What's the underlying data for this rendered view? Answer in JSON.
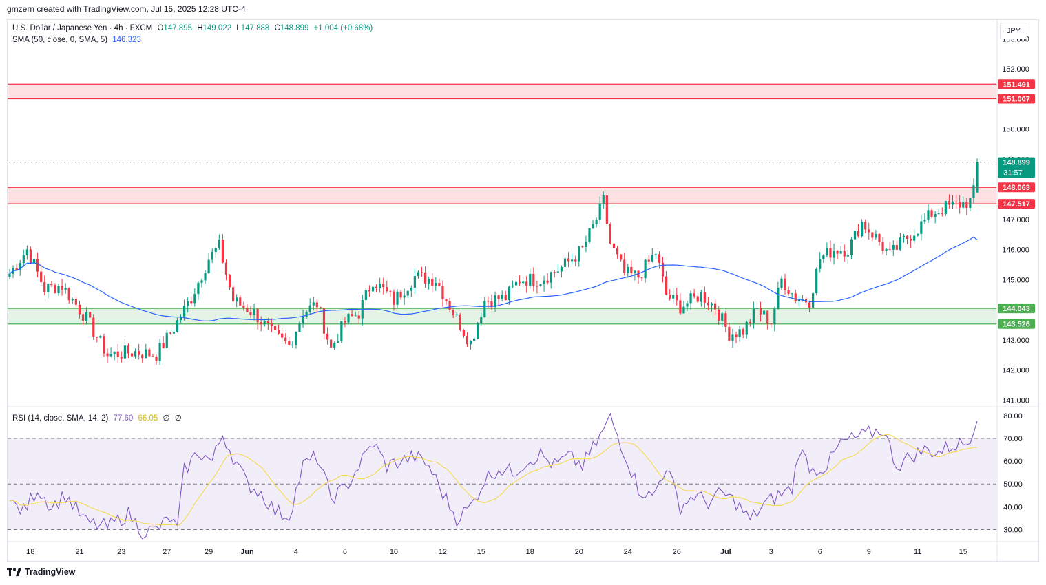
{
  "header": {
    "credit": "gmzern created with TradingView.com, Jul 15, 2025 12:28 UTC-4"
  },
  "legend": {
    "symbol": "U.S. Dollar / Japanese Yen · 4h · FXCM",
    "o_label": "O",
    "o_value": "147.895",
    "h_label": "H",
    "h_value": "149.022",
    "l_label": "L",
    "l_value": "147.888",
    "c_label": "C",
    "c_value": "148.899",
    "change": "+1.004 (+0.68%)",
    "sma_label": "SMA (50, close, 0, SMA, 5)",
    "sma_value": "146.323",
    "rsi_label": "RSI (14, close, SMA, 14, 2)",
    "rsi_value": "77.60",
    "rsi_ma_value": "66.05",
    "rsi_extra1": "∅",
    "rsi_extra2": "∅"
  },
  "currency": "JPY",
  "footer": {
    "brand": "TradingView"
  },
  "colors": {
    "up": "#089981",
    "down": "#f23645",
    "sma": "#2962ff",
    "rsi": "#7e57c2",
    "rsi_ma": "#f5d94a",
    "resistance": "#f23645",
    "support": "#4caf50"
  },
  "chart_data": [
    {
      "type": "candlestick",
      "title": "U.S. Dollar / Japanese Yen · 4h · FXCM",
      "ylim": [
        140.8,
        153.6
      ],
      "y_ticks": [
        "153.000",
        "152.000",
        "151.000",
        "150.000",
        "149.000",
        "148.000",
        "147.000",
        "146.000",
        "145.000",
        "144.000",
        "143.000",
        "142.000",
        "141.000"
      ],
      "x_ticks": [
        "18",
        "21",
        "23",
        "27",
        "29",
        "Jun",
        "4",
        "6",
        "10",
        "12",
        "15",
        "18",
        "20",
        "24",
        "26",
        "Jul",
        "3",
        "6",
        "9",
        "11",
        "15"
      ],
      "x_tick_bar_index": [
        6,
        20,
        32,
        45,
        57,
        68,
        82,
        96,
        110,
        124,
        135,
        149,
        163,
        177,
        191,
        205,
        218,
        232,
        246,
        260,
        273
      ],
      "price_labels": [
        {
          "value": 151.491,
          "text": "151.491",
          "kind": "resistance"
        },
        {
          "value": 151.007,
          "text": "151.007",
          "kind": "resistance"
        },
        {
          "value": 148.899,
          "text": "148.899",
          "countdown": "31:57",
          "kind": "last"
        },
        {
          "value": 148.063,
          "text": "148.063",
          "kind": "resistance"
        },
        {
          "value": 147.517,
          "text": "147.517",
          "kind": "resistance"
        },
        {
          "value": 144.043,
          "text": "144.043",
          "kind": "support"
        },
        {
          "value": 143.526,
          "text": "143.526",
          "kind": "support"
        }
      ],
      "zones": [
        {
          "from": 151.007,
          "to": 151.491,
          "kind": "resistance"
        },
        {
          "from": 147.517,
          "to": 148.063,
          "kind": "resistance"
        },
        {
          "from": 143.526,
          "to": 144.043,
          "kind": "support"
        }
      ],
      "last_price": 148.899,
      "ohlc_last": {
        "open": 147.895,
        "high": 149.022,
        "low": 147.888,
        "close": 148.899
      },
      "sma_last": 146.323,
      "anchors": [
        [
          0,
          145.2
        ],
        [
          5,
          146.0
        ],
        [
          10,
          144.7
        ],
        [
          15,
          144.8
        ],
        [
          22,
          143.7
        ],
        [
          28,
          142.5
        ],
        [
          36,
          142.6
        ],
        [
          42,
          142.5
        ],
        [
          47,
          143.4
        ],
        [
          52,
          144.4
        ],
        [
          57,
          145.7
        ],
        [
          60,
          146.1
        ],
        [
          64,
          144.3
        ],
        [
          70,
          143.9
        ],
        [
          76,
          143.1
        ],
        [
          80,
          142.8
        ],
        [
          84,
          143.9
        ],
        [
          88,
          144.2
        ],
        [
          92,
          142.7
        ],
        [
          96,
          143.6
        ],
        [
          100,
          143.9
        ],
        [
          104,
          145.0
        ],
        [
          110,
          144.3
        ],
        [
          116,
          145.1
        ],
        [
          122,
          145.0
        ],
        [
          128,
          143.7
        ],
        [
          132,
          142.9
        ],
        [
          136,
          144.3
        ],
        [
          142,
          144.4
        ],
        [
          146,
          145.0
        ],
        [
          152,
          145.0
        ],
        [
          158,
          145.4
        ],
        [
          164,
          146.0
        ],
        [
          168,
          147.0
        ],
        [
          170,
          147.6
        ],
        [
          172,
          146.2
        ],
        [
          176,
          145.2
        ],
        [
          180,
          145.1
        ],
        [
          185,
          145.9
        ],
        [
          188,
          144.5
        ],
        [
          192,
          144.1
        ],
        [
          198,
          144.5
        ],
        [
          202,
          144.1
        ],
        [
          206,
          143.2
        ],
        [
          210,
          143.3
        ],
        [
          214,
          144.0
        ],
        [
          218,
          143.6
        ],
        [
          221,
          145.0
        ],
        [
          225,
          144.4
        ],
        [
          229,
          144.3
        ],
        [
          232,
          145.7
        ],
        [
          236,
          146.0
        ],
        [
          240,
          146.0
        ],
        [
          244,
          146.9
        ],
        [
          248,
          146.4
        ],
        [
          252,
          145.8
        ],
        [
          256,
          146.3
        ],
        [
          260,
          146.7
        ],
        [
          264,
          147.2
        ],
        [
          268,
          147.4
        ],
        [
          272,
          147.5
        ],
        [
          275,
          147.6
        ],
        [
          276,
          147.9
        ],
        [
          277,
          148.9
        ]
      ],
      "bar_count": 278
    },
    {
      "type": "line",
      "title": "RSI (14, close, SMA, 14, 2)",
      "ylim": [
        25,
        83
      ],
      "y_ticks": [
        "80.00",
        "70.00",
        "60.00",
        "50.00",
        "40.00",
        "30.00"
      ],
      "bands": {
        "upper": 70,
        "middle": 50,
        "lower": 30
      },
      "series": [
        {
          "values_anchor": [
            [
              0,
              42
            ],
            [
              4,
              38
            ],
            [
              8,
              48
            ],
            [
              12,
              40
            ],
            [
              16,
              45
            ],
            [
              22,
              33
            ],
            [
              28,
              31
            ],
            [
              34,
              37
            ],
            [
              38,
              29
            ],
            [
              42,
              30
            ],
            [
              46,
              35
            ],
            [
              48,
              30
            ],
            [
              50,
              56
            ],
            [
              54,
              64
            ],
            [
              58,
              60
            ],
            [
              61,
              72
            ],
            [
              64,
              62
            ],
            [
              68,
              50
            ],
            [
              72,
              46
            ],
            [
              76,
              38
            ],
            [
              80,
              36
            ],
            [
              84,
              58
            ],
            [
              88,
              62
            ],
            [
              92,
              44
            ],
            [
              96,
              48
            ],
            [
              100,
              58
            ],
            [
              104,
              68
            ],
            [
              108,
              58
            ],
            [
              112,
              60
            ],
            [
              116,
              62
            ],
            [
              120,
              58
            ],
            [
              124,
              46
            ],
            [
              128,
              35
            ],
            [
              132,
              40
            ],
            [
              136,
              52
            ],
            [
              140,
              57
            ],
            [
              144,
              55
            ],
            [
              148,
              60
            ],
            [
              152,
              63
            ],
            [
              156,
              58
            ],
            [
              160,
              62
            ],
            [
              164,
              58
            ],
            [
              168,
              68
            ],
            [
              172,
              79
            ],
            [
              176,
              64
            ],
            [
              180,
              48
            ],
            [
              184,
              44
            ],
            [
              188,
              58
            ],
            [
              192,
              40
            ],
            [
              196,
              45
            ],
            [
              200,
              42
            ],
            [
              204,
              46
            ],
            [
              208,
              42
            ],
            [
              212,
              34
            ],
            [
              216,
              41
            ],
            [
              220,
              45
            ],
            [
              224,
              48
            ],
            [
              226,
              65
            ],
            [
              230,
              56
            ],
            [
              234,
              58
            ],
            [
              238,
              68
            ],
            [
              242,
              70
            ],
            [
              246,
              72
            ],
            [
              250,
              74
            ],
            [
              254,
              58
            ],
            [
              258,
              62
            ],
            [
              262,
              65
            ],
            [
              266,
              64
            ],
            [
              270,
              67
            ],
            [
              274,
              68
            ],
            [
              277,
              77.6
            ]
          ],
          "last": 77.6
        }
      ],
      "ma_last": 66.05
    }
  ]
}
